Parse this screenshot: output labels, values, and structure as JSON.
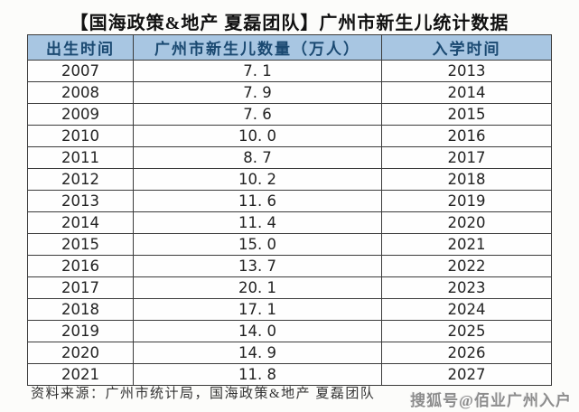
{
  "title": "【国海政策&地产 夏磊团队】广州市新生儿统计数据",
  "table": {
    "headers": [
      "出生时间",
      "广州市新生儿数量（万人）",
      "入学时间"
    ],
    "rows": [
      [
        "2007",
        "7. 1",
        "2013"
      ],
      [
        "2008",
        "7. 9",
        "2014"
      ],
      [
        "2009",
        "7. 6",
        "2015"
      ],
      [
        "2010",
        "10. 0",
        "2016"
      ],
      [
        "2011",
        "8. 7",
        "2017"
      ],
      [
        "2012",
        "10. 2",
        "2018"
      ],
      [
        "2013",
        "11. 6",
        "2019"
      ],
      [
        "2014",
        "11. 4",
        "2020"
      ],
      [
        "2015",
        "15. 0",
        "2021"
      ],
      [
        "2016",
        "13. 7",
        "2022"
      ],
      [
        "2017",
        "20. 1",
        "2023"
      ],
      [
        "2018",
        "17. 1",
        "2024"
      ],
      [
        "2019",
        "14. 0",
        "2025"
      ],
      [
        "2020",
        "14. 9",
        "2026"
      ],
      [
        "2021",
        "11. 8",
        "2027"
      ]
    ]
  },
  "footer": {
    "source": "资料来源：广州市统计局，国海政策&地产 夏磊团队"
  },
  "watermark": "搜狐号@佰业广州入户",
  "colors": {
    "header_bg": "#a8c6e2",
    "header_text": "#1a4971",
    "border": "#3b3b3b",
    "body_text": "#222222",
    "page_bg": "#fcfcfa",
    "watermark_text": "#8d8d8d"
  },
  "chart_data": {
    "type": "table",
    "title": "【国海政策&地产 夏磊团队】广州市新生儿统计数据",
    "columns": [
      "出生时间",
      "广州市新生儿数量（万人）",
      "入学时间"
    ],
    "rows": [
      [
        2007,
        7.1,
        2013
      ],
      [
        2008,
        7.9,
        2014
      ],
      [
        2009,
        7.6,
        2015
      ],
      [
        2010,
        10.0,
        2016
      ],
      [
        2011,
        8.7,
        2017
      ],
      [
        2012,
        10.2,
        2018
      ],
      [
        2013,
        11.6,
        2019
      ],
      [
        2014,
        11.4,
        2020
      ],
      [
        2015,
        15.0,
        2021
      ],
      [
        2016,
        13.7,
        2022
      ],
      [
        2017,
        20.1,
        2023
      ],
      [
        2018,
        17.1,
        2024
      ],
      [
        2019,
        14.0,
        2025
      ],
      [
        2020,
        14.9,
        2026
      ],
      [
        2021,
        11.8,
        2027
      ]
    ],
    "source_note": "资料来源：广州市统计局，国海政策&地产 夏磊团队"
  }
}
